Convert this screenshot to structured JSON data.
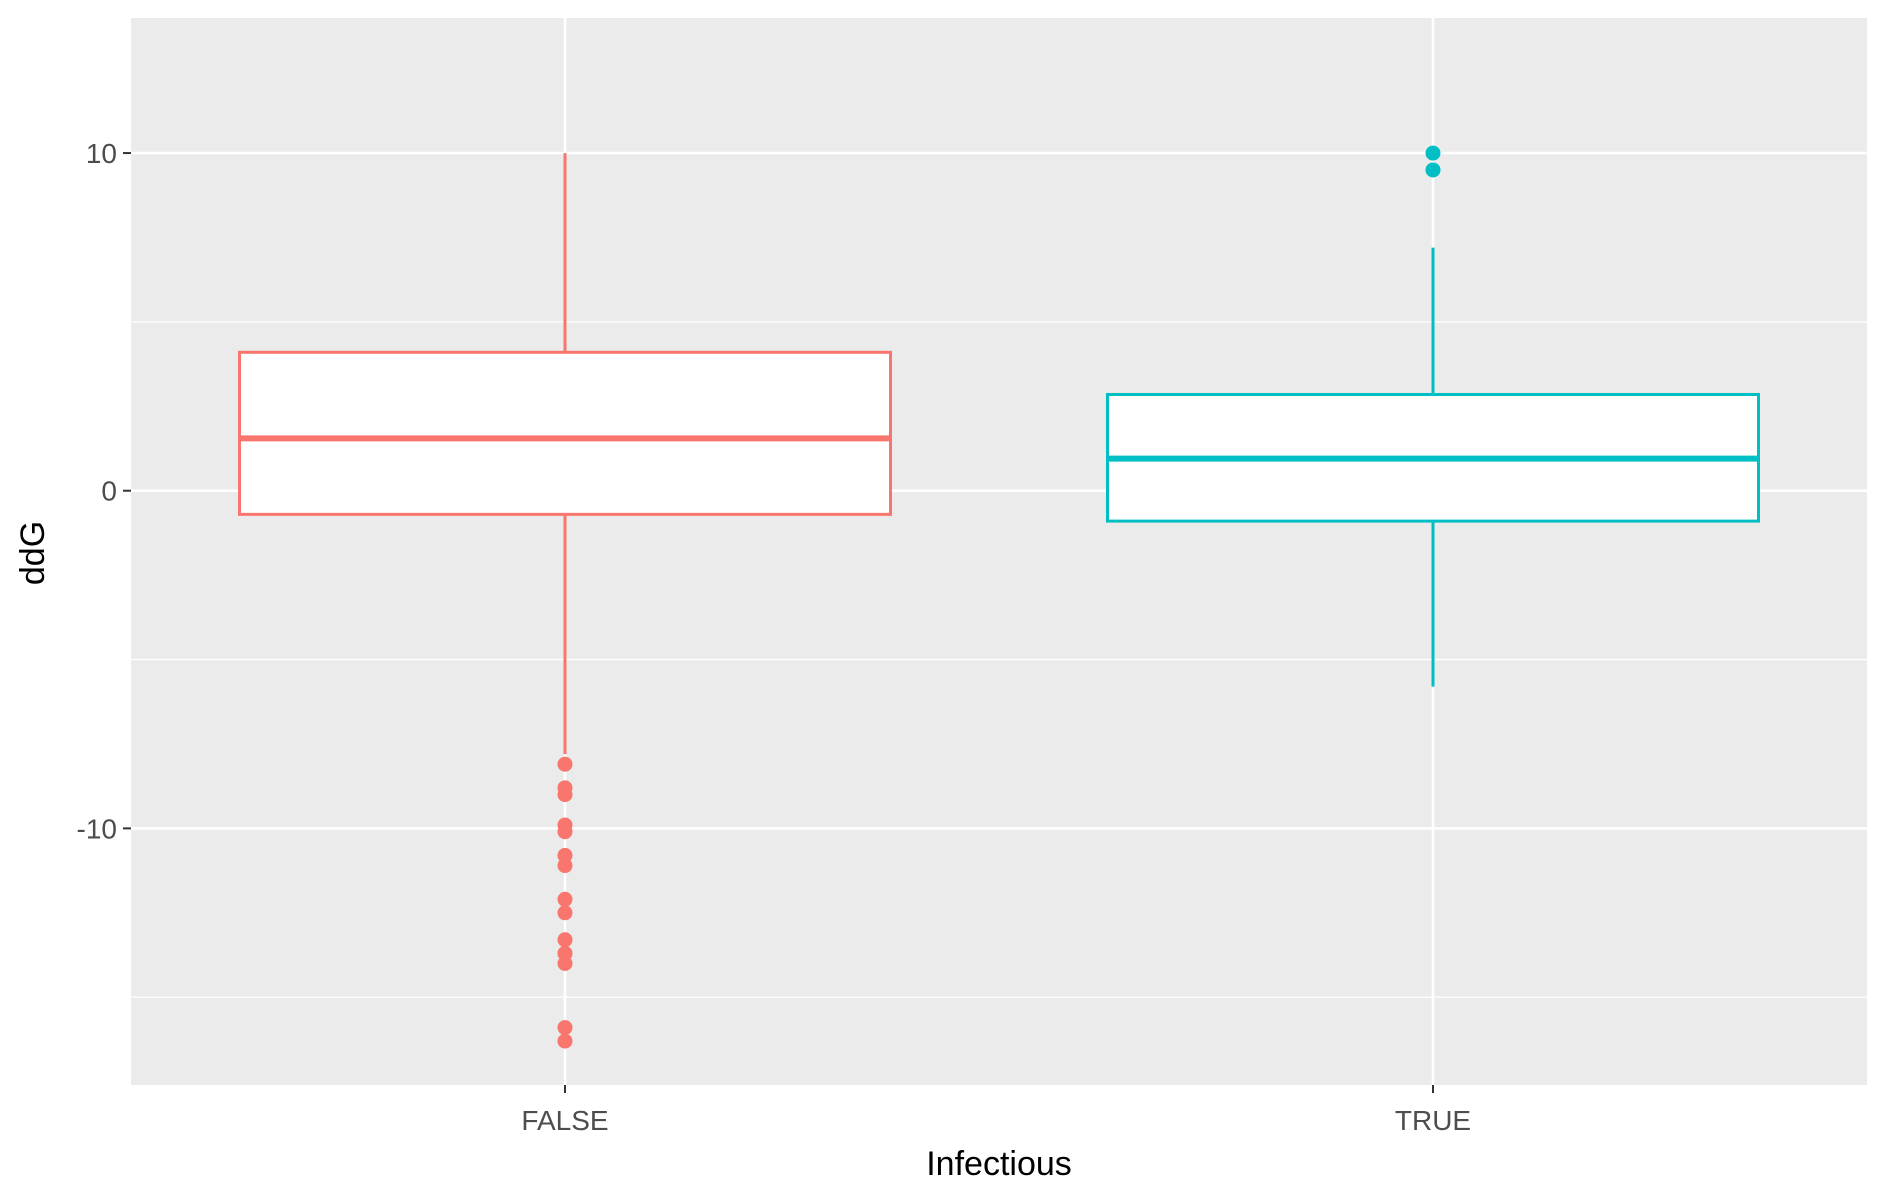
{
  "chart_data": {
    "type": "boxplot",
    "title": "",
    "xlabel": "Infectious",
    "ylabel": "ddG",
    "ylim": [
      -17.6,
      14.0
    ],
    "yticks": [
      {
        "value": 10,
        "label": "10"
      },
      {
        "value": 0,
        "label": "0"
      },
      {
        "value": -10,
        "label": "-10"
      }
    ],
    "y_minor_gridlines": [
      5,
      -5,
      -15
    ],
    "grid": true,
    "legend": "none",
    "panel_background": "#ebebeb",
    "gridline_color": "#ffffff",
    "categories": [
      "FALSE",
      "TRUE"
    ],
    "boxes": [
      {
        "category": "FALSE",
        "color": "#f8766d",
        "whisker_low": -7.8,
        "q1": -0.7,
        "median": 1.55,
        "q3": 4.1,
        "whisker_high": 10.0,
        "outliers": [
          -8.1,
          -8.8,
          -9.0,
          -9.9,
          -10.1,
          -10.8,
          -11.1,
          -12.1,
          -12.5,
          -13.3,
          -13.7,
          -14.0,
          -15.9,
          -16.3
        ]
      },
      {
        "category": "TRUE",
        "color": "#00bfc4",
        "whisker_low": -5.8,
        "q1": -0.9,
        "median": 0.95,
        "q3": 2.85,
        "whisker_high": 7.2,
        "outliers": [
          10.0,
          9.5
        ]
      }
    ]
  }
}
